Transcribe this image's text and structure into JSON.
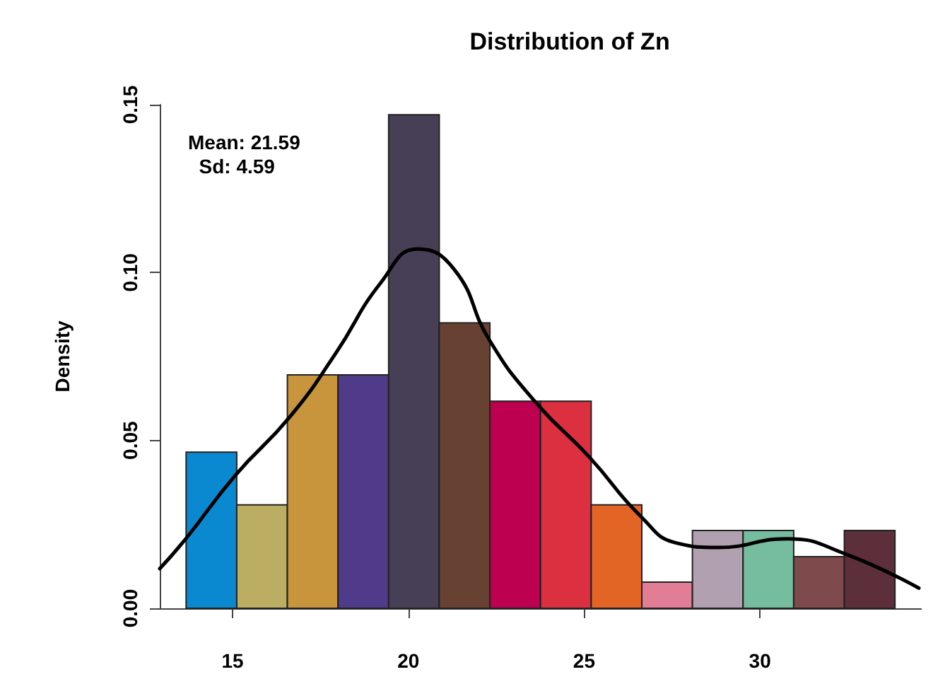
{
  "chart_data": {
    "type": "histogram",
    "title": "Distribution of Zn",
    "ylabel": "Density",
    "annotations": [
      "Mean: 21.59",
      "Sd: 4.59"
    ],
    "bins": [
      13.68,
      15.12,
      16.56,
      18.0,
      19.44,
      20.88,
      22.32,
      23.76,
      25.2,
      26.64,
      28.08,
      29.52,
      30.96,
      32.4,
      33.84
    ],
    "values": [
      0.0465,
      0.0308,
      0.0695,
      0.0695,
      0.147,
      0.085,
      0.0617,
      0.0617,
      0.0308,
      0.0078,
      0.0232,
      0.0232,
      0.0154,
      0.0232
    ],
    "colors": [
      "#0a88d0",
      "#bbad62",
      "#c8953c",
      "#4f3b8a",
      "#463f55",
      "#674233",
      "#bd004f",
      "#dc3040",
      "#e36526",
      "#e27d96",
      "#b0a0b0",
      "#76bc9e",
      "#7e4a4c",
      "#5c2f3a"
    ],
    "series": [
      {
        "type": "line",
        "color": "#000000",
        "x": [
          12.93,
          13.67,
          15.07,
          16.63,
          17.92,
          19.22,
          20.26,
          21.3,
          22.3,
          23.6,
          25.16,
          26.6,
          27.64,
          28.81,
          30.76,
          32.45,
          34.52
        ],
        "values": [
          0.0118,
          0.0207,
          0.0395,
          0.057,
          0.0757,
          0.097,
          0.107,
          0.101,
          0.08,
          0.0616,
          0.0449,
          0.0275,
          0.0194,
          0.0181,
          0.0207,
          0.0161,
          0.006
        ]
      }
    ],
    "xlim": [
      12.93,
      34.6
    ],
    "ylim": [
      0,
      0.15
    ],
    "xticks": [
      15,
      20,
      25,
      30
    ],
    "yticks": [
      {
        "value": 0,
        "label": "0.00"
      },
      0.05,
      {
        "value": 0.1,
        "label": "0.10"
      },
      0.15
    ],
    "marker": "none",
    "line_style": "solid"
  }
}
